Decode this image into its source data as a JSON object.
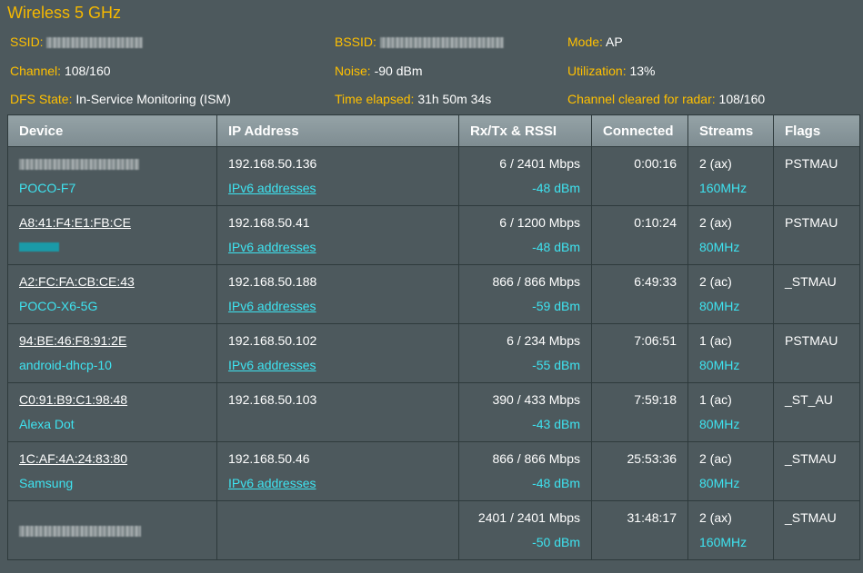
{
  "title": "Wireless 5 GHz",
  "info": {
    "ssid_label": "SSID:",
    "bssid_label": "BSSID:",
    "mode_label": "Mode:",
    "mode_value": "AP",
    "channel_label": "Channel:",
    "channel_value": "108/160",
    "noise_label": "Noise:",
    "noise_value": "-90 dBm",
    "utilization_label": "Utilization:",
    "utilization_value": "13%",
    "dfs_label": "DFS State:",
    "dfs_value": "In-Service Monitoring (ISM)",
    "elapsed_label": "Time elapsed:",
    "elapsed_value": "31h 50m 34s",
    "cleared_label": "Channel cleared for radar:",
    "cleared_value": "108/160"
  },
  "table": {
    "headers": {
      "device": "Device",
      "ip": "IP Address",
      "rxtx": "Rx/Tx & RSSI",
      "connected": "Connected",
      "streams": "Streams",
      "flags": "Flags"
    },
    "rows": [
      {
        "mac": "",
        "name": "POCO-F7",
        "ip": "192.168.50.136",
        "ipv6": "IPv6 addresses",
        "rate": "6 / 2401 Mbps",
        "rssi": "-48 dBm",
        "connected": "0:00:16",
        "streams": "2 (ax)",
        "bw": "160MHz",
        "flags": "PSTMAU"
      },
      {
        "mac": "A8:41:F4:E1:FB:CE",
        "name": "",
        "ip": "192.168.50.41",
        "ipv6": "IPv6 addresses",
        "rate": "6 / 1200 Mbps",
        "rssi": "-48 dBm",
        "connected": "0:10:24",
        "streams": "2 (ax)",
        "bw": "80MHz",
        "flags": "PSTMAU"
      },
      {
        "mac": "A2:FC:FA:CB:CE:43",
        "name": "POCO-X6-5G",
        "ip": "192.168.50.188",
        "ipv6": "IPv6 addresses",
        "rate": "866 / 866 Mbps",
        "rssi": "-59 dBm",
        "connected": "6:49:33",
        "streams": "2 (ac)",
        "bw": "80MHz",
        "flags": "_STMAU"
      },
      {
        "mac": "94:BE:46:F8:91:2E",
        "name": "android-dhcp-10",
        "ip": "192.168.50.102",
        "ipv6": "IPv6 addresses",
        "rate": "6 / 234 Mbps",
        "rssi": "-55 dBm",
        "connected": "7:06:51",
        "streams": "1 (ac)",
        "bw": "80MHz",
        "flags": "PSTMAU"
      },
      {
        "mac": "C0:91:B9:C1:98:48",
        "name": "Alexa Dot",
        "ip": "192.168.50.103",
        "ipv6": "",
        "rate": "390 / 433 Mbps",
        "rssi": "-43 dBm",
        "connected": "7:59:18",
        "streams": "1 (ac)",
        "bw": "80MHz",
        "flags": "_ST_AU"
      },
      {
        "mac": "1C:AF:4A:24:83:80",
        "name": "Samsung",
        "ip": "192.168.50.46",
        "ipv6": "IPv6 addresses",
        "rate": "866 / 866 Mbps",
        "rssi": "-48 dBm",
        "connected": "25:53:36",
        "streams": "2 (ac)",
        "bw": "80MHz",
        "flags": "_STMAU"
      },
      {
        "mac": "",
        "name": "",
        "ip": "",
        "ipv6": "",
        "rate": "2401 / 2401 Mbps",
        "rssi": "-50 dBm",
        "connected": "31:48:17",
        "streams": "2 (ax)",
        "bw": "160MHz",
        "flags": "_STMAU"
      }
    ]
  }
}
